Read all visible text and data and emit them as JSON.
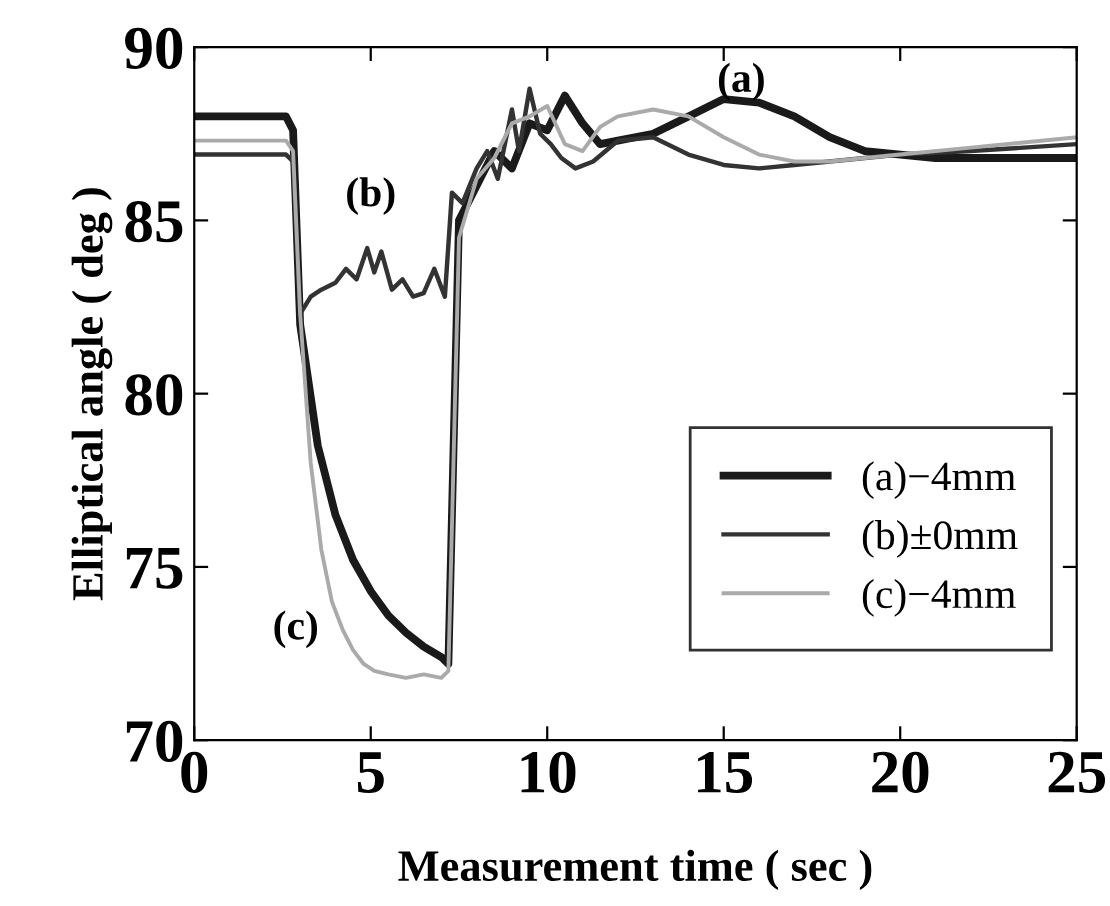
{
  "chart_data": {
    "type": "line",
    "xlabel": "Measurement time ( sec )",
    "ylabel": "Elliptical angle ( deg )",
    "xlim": [
      0,
      25
    ],
    "ylim": [
      70,
      90
    ],
    "xticks": [
      0,
      5,
      10,
      15,
      20,
      25
    ],
    "yticks": [
      70,
      75,
      80,
      85,
      90
    ],
    "grid": false,
    "legend": "bottom right",
    "series": [
      {
        "name": "(a)−4mm",
        "color": "#1a1a1a",
        "x": [
          0,
          2.6,
          2.8,
          3.0,
          3.5,
          4.0,
          4.5,
          5.0,
          5.5,
          6.0,
          6.5,
          7.0,
          7.2,
          7.5,
          8.0,
          8.5,
          9.0,
          9.5,
          10.0,
          10.5,
          11.0,
          11.5,
          12.0,
          13.0,
          14.0,
          15.0,
          16.0,
          17.0,
          18.0,
          19.0,
          20.0,
          21.0,
          22.0,
          23.0,
          25.0
        ],
        "values": [
          88.0,
          88.0,
          87.6,
          82.0,
          78.5,
          76.5,
          75.2,
          74.3,
          73.6,
          73.1,
          72.7,
          72.4,
          72.2,
          85.0,
          86.0,
          87.0,
          86.5,
          87.8,
          87.6,
          88.6,
          87.8,
          87.2,
          87.3,
          87.5,
          88.0,
          88.5,
          88.4,
          88.0,
          87.4,
          87.0,
          86.9,
          86.8,
          86.8,
          86.8,
          86.8
        ]
      },
      {
        "name": "(b)±0mm",
        "color": "#333333",
        "x": [
          0,
          2.6,
          2.8,
          3.0,
          3.3,
          3.6,
          4.0,
          4.3,
          4.6,
          4.9,
          5.1,
          5.3,
          5.6,
          5.9,
          6.2,
          6.5,
          6.8,
          7.1,
          7.3,
          7.6,
          8.0,
          8.3,
          8.6,
          9.0,
          9.2,
          9.5,
          9.8,
          10.1,
          10.4,
          10.8,
          11.3,
          12.0,
          13.0,
          14.0,
          15.0,
          16.0,
          17.0,
          18.0,
          20.0,
          22.0,
          25.0
        ],
        "values": [
          86.9,
          86.9,
          86.7,
          82.3,
          82.8,
          83.0,
          83.2,
          83.6,
          83.3,
          84.2,
          83.5,
          84.1,
          83.0,
          83.3,
          82.8,
          82.9,
          83.6,
          82.8,
          85.8,
          85.5,
          86.5,
          87.0,
          86.2,
          88.2,
          87.0,
          88.8,
          87.5,
          87.2,
          86.8,
          86.5,
          86.7,
          87.3,
          87.4,
          86.9,
          86.6,
          86.5,
          86.6,
          86.7,
          86.9,
          87.0,
          87.2
        ]
      },
      {
        "name": "(c)−4mm",
        "color": "#aaaaaa",
        "x": [
          0,
          2.6,
          2.8,
          3.0,
          3.3,
          3.6,
          3.9,
          4.2,
          4.5,
          4.8,
          5.1,
          5.5,
          6.0,
          6.5,
          7.0,
          7.2,
          7.5,
          8.0,
          8.5,
          9.0,
          9.5,
          10.0,
          10.5,
          11.0,
          11.5,
          12.0,
          13.0,
          14.0,
          15.0,
          16.0,
          17.0,
          18.0,
          19.0,
          20.0,
          22.0,
          25.0
        ],
        "values": [
          87.3,
          87.3,
          87.0,
          82.3,
          78.0,
          75.5,
          74.0,
          73.2,
          72.6,
          72.2,
          72.0,
          71.9,
          71.8,
          71.9,
          71.8,
          72.0,
          84.5,
          86.2,
          86.8,
          87.8,
          88.0,
          88.3,
          87.2,
          87.0,
          87.7,
          88.0,
          88.2,
          88.0,
          87.4,
          86.9,
          86.7,
          86.7,
          86.8,
          86.9,
          87.1,
          87.4
        ]
      }
    ],
    "annotations": [
      "(a)",
      "(b)",
      "(c)"
    ]
  }
}
